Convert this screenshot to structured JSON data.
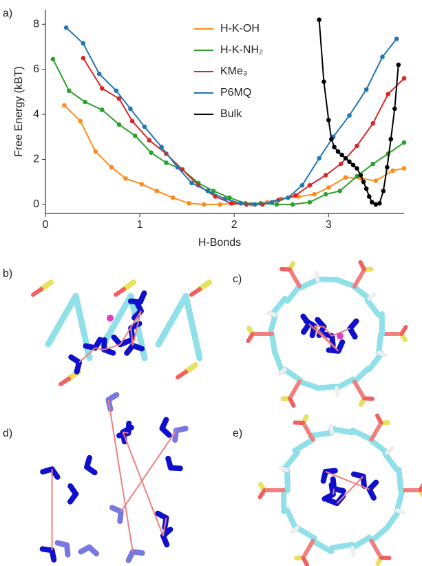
{
  "chart_data": {
    "type": "line",
    "panel_label": "a)",
    "xlabel": "H-Bonds",
    "ylabel": "Free Energy (kBT)",
    "xlim": [
      0,
      3.8
    ],
    "ylim": [
      -0.4,
      8.65
    ],
    "xticks": [
      0,
      1,
      2,
      3
    ],
    "yticks": [
      0,
      2,
      4,
      6,
      8
    ],
    "legend": "top-center",
    "series": [
      {
        "name": "H-K-OH",
        "color": "#ff8c1a",
        "x": [
          0.2,
          0.37,
          0.53,
          0.7,
          0.85,
          1.02,
          1.18,
          1.35,
          1.52,
          1.68,
          1.85,
          2.0,
          2.18,
          2.35,
          2.5,
          2.68,
          2.85,
          3.0,
          3.18,
          3.35,
          3.5,
          3.68,
          3.8
        ],
        "values": [
          4.4,
          3.7,
          2.35,
          1.65,
          1.15,
          0.9,
          0.6,
          0.3,
          0.05,
          0.0,
          0.0,
          0.05,
          0.0,
          0.1,
          0.25,
          0.35,
          0.45,
          0.75,
          1.2,
          1.15,
          1.05,
          1.5,
          1.6
        ]
      },
      {
        "name": "H-K-NH₂",
        "color": "#2ca02c",
        "x": [
          0.08,
          0.25,
          0.42,
          0.6,
          0.78,
          0.95,
          1.12,
          1.28,
          1.45,
          1.62,
          1.78,
          1.95,
          2.12,
          2.28,
          2.45,
          2.62,
          2.8,
          2.97,
          3.12,
          3.3,
          3.47,
          3.63,
          3.8
        ],
        "values": [
          6.45,
          5.05,
          4.55,
          4.2,
          3.55,
          3.05,
          2.3,
          1.85,
          1.55,
          0.95,
          0.6,
          0.3,
          0.05,
          0.05,
          0.0,
          0.0,
          0.1,
          0.45,
          0.6,
          1.25,
          1.8,
          2.25,
          2.75
        ]
      },
      {
        "name": "KMe₃",
        "color": "#d62728",
        "x": [
          0.4,
          0.6,
          0.78,
          0.92,
          1.1,
          1.28,
          1.45,
          1.62,
          1.8,
          1.97,
          2.13,
          2.3,
          2.47,
          2.65,
          2.8,
          2.97,
          3.13,
          3.3,
          3.47,
          3.63,
          3.8
        ],
        "values": [
          6.5,
          5.15,
          4.7,
          3.7,
          2.85,
          2.25,
          1.55,
          0.85,
          0.35,
          0.05,
          0.0,
          0.0,
          0.2,
          0.4,
          0.85,
          1.3,
          1.8,
          2.6,
          3.6,
          4.9,
          5.6
        ]
      },
      {
        "name": "P6MQ",
        "color": "#1f77b4",
        "x": [
          0.22,
          0.4,
          0.57,
          0.75,
          0.9,
          1.05,
          1.23,
          1.4,
          1.55,
          1.72,
          1.9,
          2.07,
          2.22,
          2.4,
          2.57,
          2.72,
          2.9,
          3.05,
          3.22,
          3.4,
          3.57,
          3.72
        ],
        "values": [
          7.85,
          7.15,
          5.8,
          5.05,
          4.25,
          3.45,
          2.55,
          1.65,
          0.95,
          0.6,
          0.25,
          0.05,
          0.0,
          0.1,
          0.3,
          0.85,
          2.05,
          3.0,
          3.95,
          5.1,
          6.55,
          7.35
        ]
      },
      {
        "name": "Bulk",
        "color": "#000000",
        "x": [
          2.9,
          2.95,
          3.0,
          3.03,
          3.06,
          3.1,
          3.14,
          3.18,
          3.22,
          3.26,
          3.3,
          3.34,
          3.37,
          3.4,
          3.43,
          3.46,
          3.5,
          3.54,
          3.58,
          3.62,
          3.66,
          3.7,
          3.74
        ],
        "values": [
          8.2,
          5.45,
          3.75,
          2.9,
          2.55,
          2.35,
          2.2,
          2.05,
          1.9,
          1.75,
          1.6,
          1.3,
          1.0,
          0.7,
          0.35,
          0.1,
          0.0,
          0.05,
          0.6,
          1.65,
          2.9,
          4.25,
          6.2
        ]
      }
    ]
  },
  "panels": [
    "b)",
    "c)",
    "d)",
    "e)"
  ]
}
